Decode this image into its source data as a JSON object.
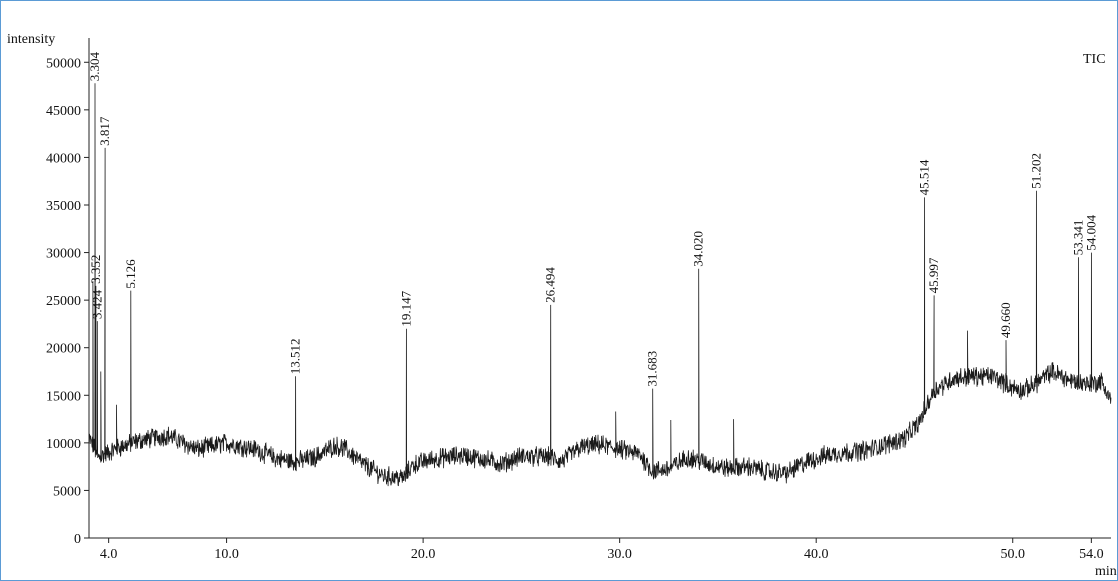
{
  "chart_data": {
    "type": "line",
    "ylabel": "intensity",
    "xlabel": "min",
    "series_label": "TIC",
    "xlim": [
      3.0,
      55.0
    ],
    "ylim": [
      0,
      51500
    ],
    "xticks": [
      4.0,
      10.0,
      20.0,
      30.0,
      40.0,
      50.0,
      54.0
    ],
    "xtick_labels": [
      "4.0",
      "10.0",
      "20.0",
      "30.0",
      "40.0",
      "50.0",
      "54.0"
    ],
    "yticks": [
      0,
      5000,
      10000,
      15000,
      20000,
      25000,
      30000,
      35000,
      40000,
      45000,
      50000
    ],
    "ytick_labels": [
      "0",
      "5000",
      "10000",
      "15000",
      "20000",
      "25000",
      "30000",
      "35000",
      "40000",
      "45000",
      "50000"
    ],
    "peaks": [
      {
        "x": 3.304,
        "label": "3.304",
        "y": 47800
      },
      {
        "x": 3.352,
        "label": "3.352",
        "y": 26500
      },
      {
        "x": 3.424,
        "label": "3.424",
        "y": 22800
      },
      {
        "x": 3.817,
        "label": "3.817",
        "y": 41000
      },
      {
        "x": 5.126,
        "label": "5.126",
        "y": 26000
      },
      {
        "x": 13.512,
        "label": "13.512",
        "y": 17000
      },
      {
        "x": 19.147,
        "label": "19.147",
        "y": 22000
      },
      {
        "x": 26.494,
        "label": "26.494",
        "y": 24500
      },
      {
        "x": 31.683,
        "label": "31.683",
        "y": 15700
      },
      {
        "x": 34.02,
        "label": "34.020",
        "y": 28300
      },
      {
        "x": 45.514,
        "label": "45.514",
        "y": 35800
      },
      {
        "x": 45.997,
        "label": "45.997",
        "y": 25500
      },
      {
        "x": 49.66,
        "label": "49.660",
        "y": 20800
      },
      {
        "x": 51.202,
        "label": "51.202",
        "y": 36500
      },
      {
        "x": 53.341,
        "label": "53.341",
        "y": 29500
      },
      {
        "x": 54.004,
        "label": "54.004",
        "y": 30000
      }
    ],
    "minor_peaks": [
      {
        "x": 3.2,
        "y": 27000
      },
      {
        "x": 3.6,
        "y": 17500
      },
      {
        "x": 4.4,
        "y": 14000
      },
      {
        "x": 29.8,
        "y": 13300
      },
      {
        "x": 35.8,
        "y": 12500
      },
      {
        "x": 32.6,
        "y": 12400
      },
      {
        "x": 47.7,
        "y": 21800
      }
    ],
    "baseline": [
      [
        3.0,
        10500
      ],
      [
        3.5,
        8500
      ],
      [
        4.5,
        9500
      ],
      [
        5.5,
        10200
      ],
      [
        7.0,
        10800
      ],
      [
        8.5,
        9300
      ],
      [
        10.0,
        10000
      ],
      [
        11.5,
        9300
      ],
      [
        12.5,
        8400
      ],
      [
        13.5,
        8000
      ],
      [
        14.5,
        8500
      ],
      [
        15.5,
        9700
      ],
      [
        16.0,
        9400
      ],
      [
        17.0,
        7700
      ],
      [
        18.0,
        6500
      ],
      [
        19.0,
        6300
      ],
      [
        19.5,
        7700
      ],
      [
        20.5,
        8300
      ],
      [
        22.0,
        8700
      ],
      [
        23.0,
        8300
      ],
      [
        24.0,
        7800
      ],
      [
        25.0,
        8600
      ],
      [
        26.5,
        8500
      ],
      [
        27.0,
        8000
      ],
      [
        28.0,
        9500
      ],
      [
        29.0,
        9800
      ],
      [
        30.0,
        9300
      ],
      [
        31.0,
        8800
      ],
      [
        31.7,
        7000
      ],
      [
        32.5,
        7300
      ],
      [
        33.5,
        8500
      ],
      [
        34.5,
        7800
      ],
      [
        35.5,
        7300
      ],
      [
        36.5,
        7500
      ],
      [
        37.5,
        7000
      ],
      [
        38.5,
        6800
      ],
      [
        39.5,
        8000
      ],
      [
        40.5,
        8700
      ],
      [
        41.5,
        9000
      ],
      [
        42.5,
        9200
      ],
      [
        43.5,
        9800
      ],
      [
        44.5,
        10500
      ],
      [
        45.2,
        12000
      ],
      [
        45.6,
        13800
      ],
      [
        46.0,
        15500
      ],
      [
        47.0,
        16800
      ],
      [
        48.0,
        17000
      ],
      [
        49.0,
        17000
      ],
      [
        50.0,
        15800
      ],
      [
        50.5,
        15500
      ],
      [
        51.0,
        16000
      ],
      [
        52.0,
        17500
      ],
      [
        53.0,
        16500
      ],
      [
        54.0,
        16200
      ],
      [
        54.5,
        16500
      ],
      [
        55.0,
        14500
      ]
    ],
    "noise_amplitude": 900,
    "legend": "none",
    "grid": false
  }
}
